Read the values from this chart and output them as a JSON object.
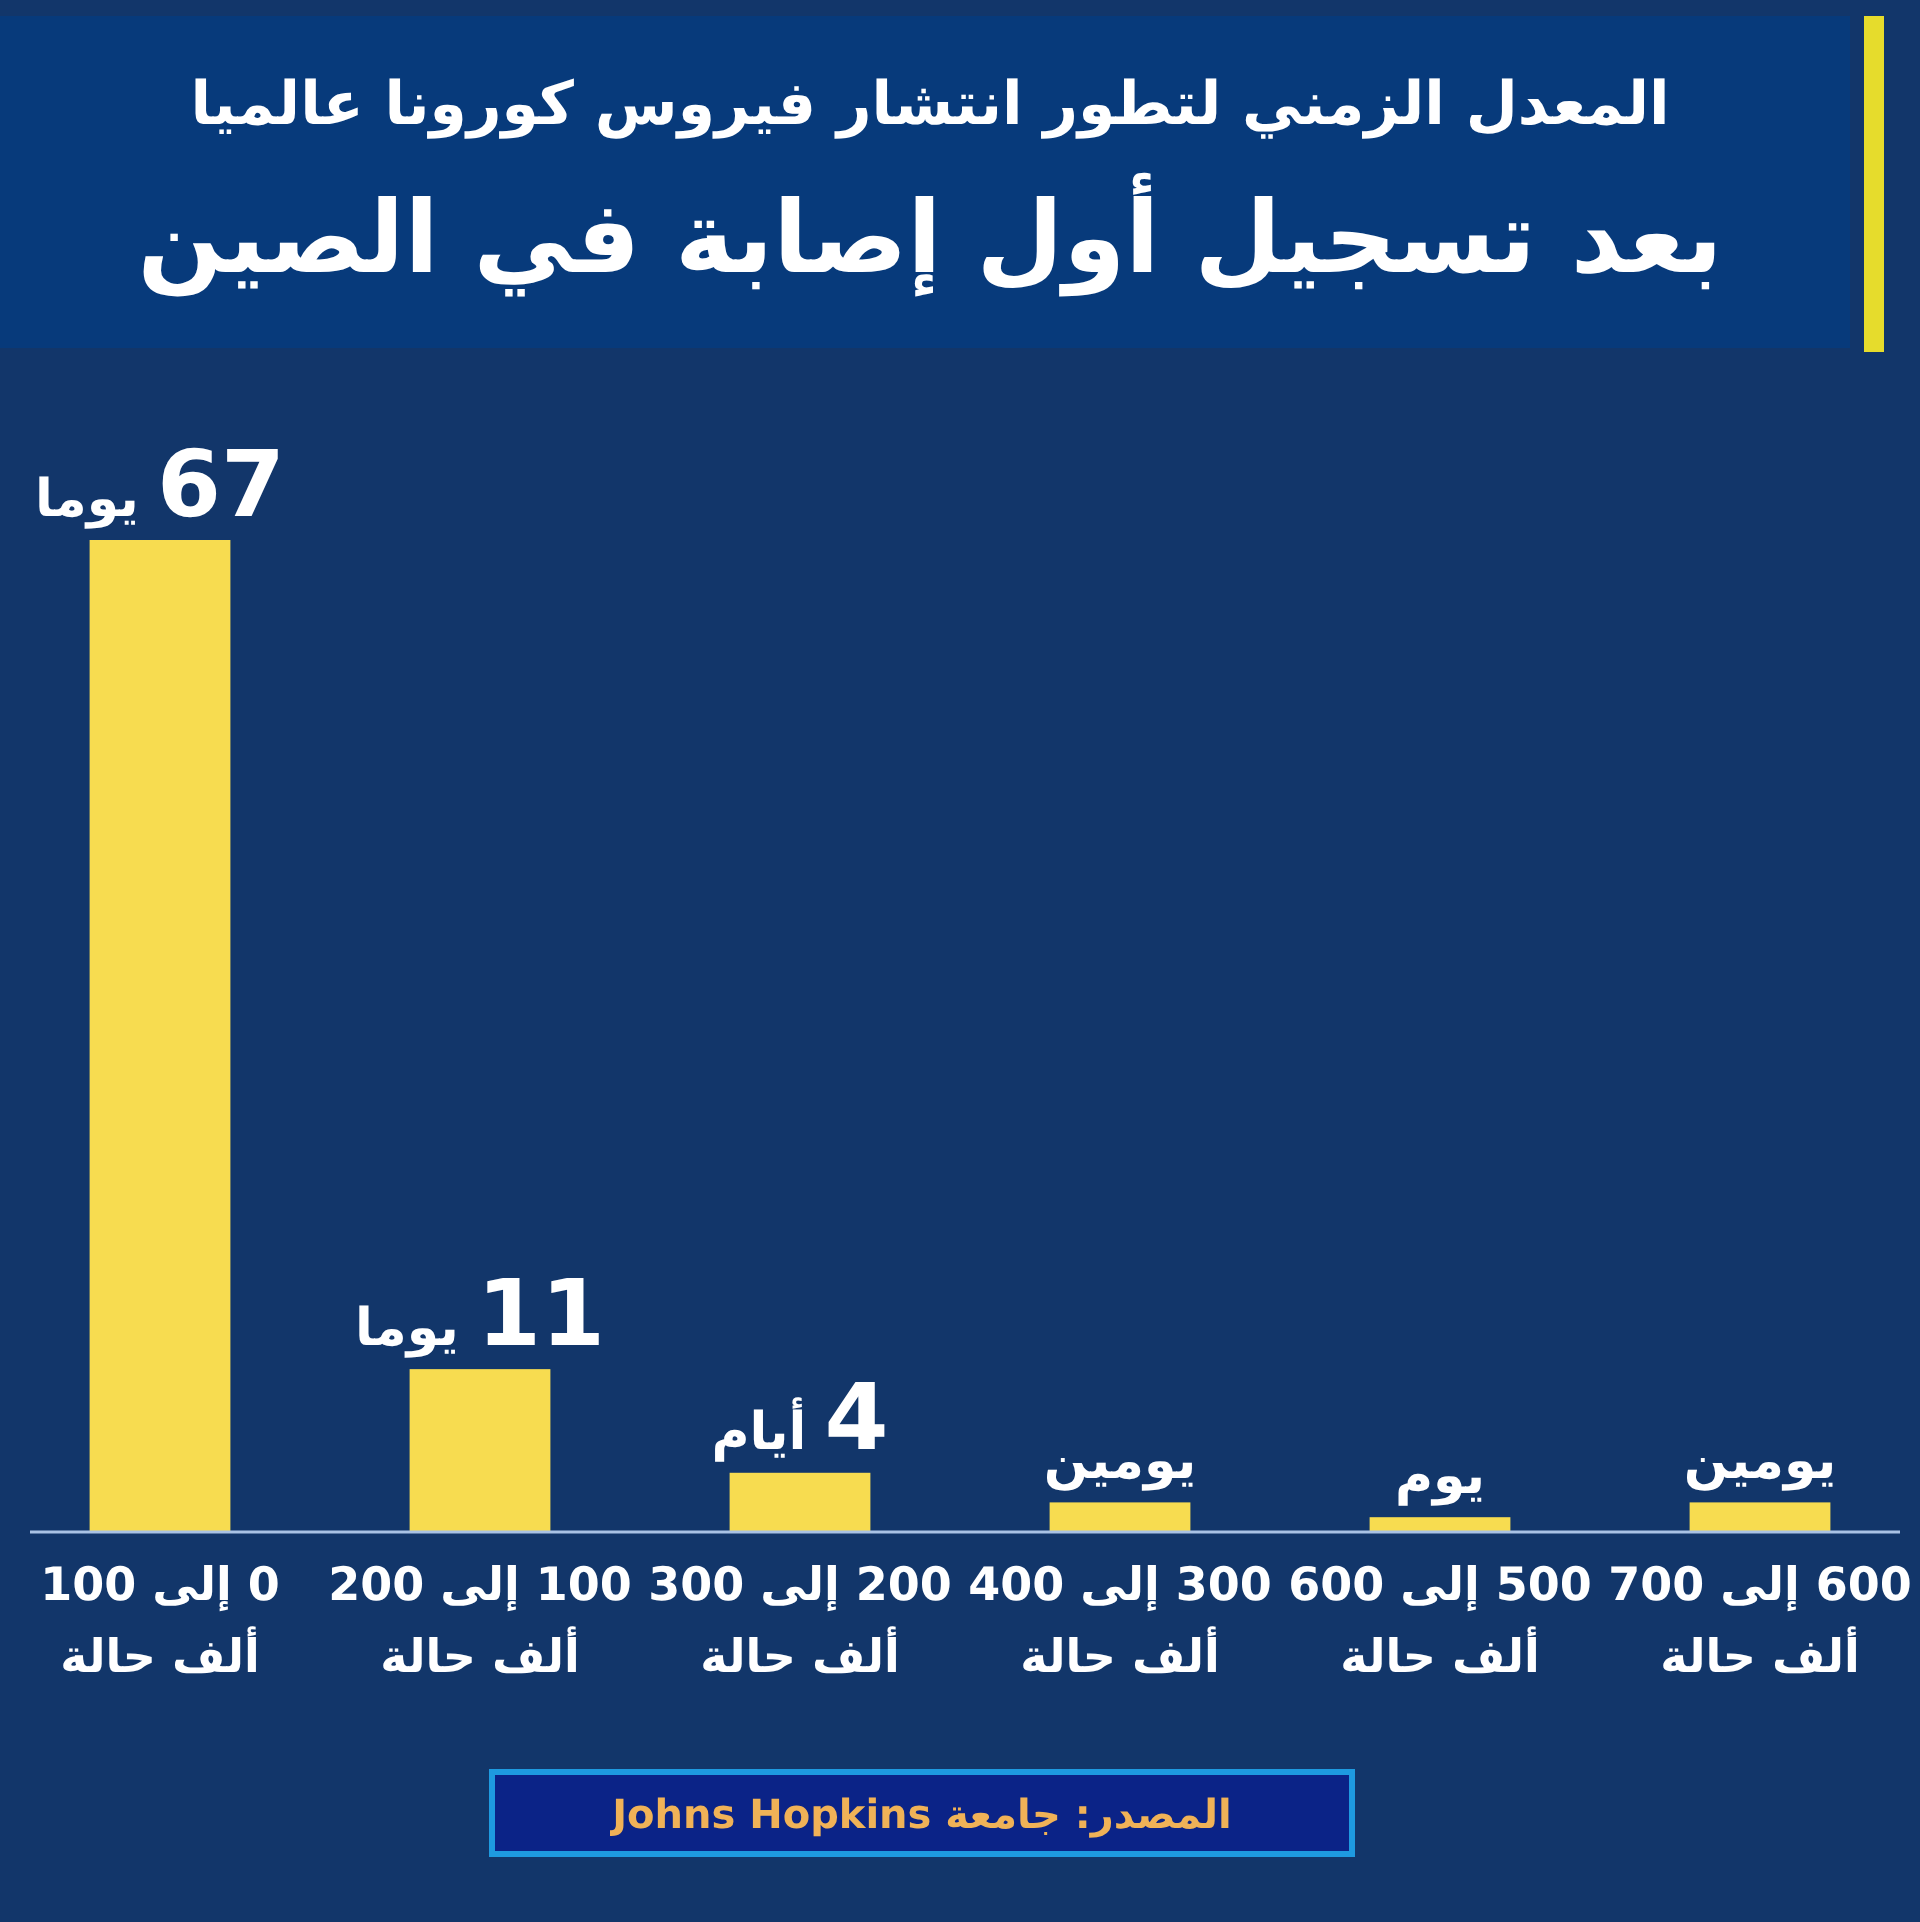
{
  "chart_data": {
    "type": "bar",
    "title": "المعدل الزمني لتطور انتشار فيروس كورونا عالميا",
    "subtitle": "بعد تسجيل أول إصابة في الصين",
    "categories": [
      "0 إلى 100\nألف حالة",
      "100 إلى 200\nألف حالة",
      "200 إلى 300\nألف حالة",
      "300 إلى 400\nألف حالة",
      "500 إلى 600\nألف حالة",
      "600 إلى 700\nألف حالة"
    ],
    "values": [
      67,
      11,
      4,
      2,
      1,
      2
    ],
    "color": "#f7dc50",
    "value_labels": [
      "67 يوما",
      "11 يوما",
      "4 أيام",
      "يومين",
      "يوم",
      "يومين"
    ],
    "annotations": [
      "المصدر: جامعة Johns Hopkins"
    ]
  }
}
